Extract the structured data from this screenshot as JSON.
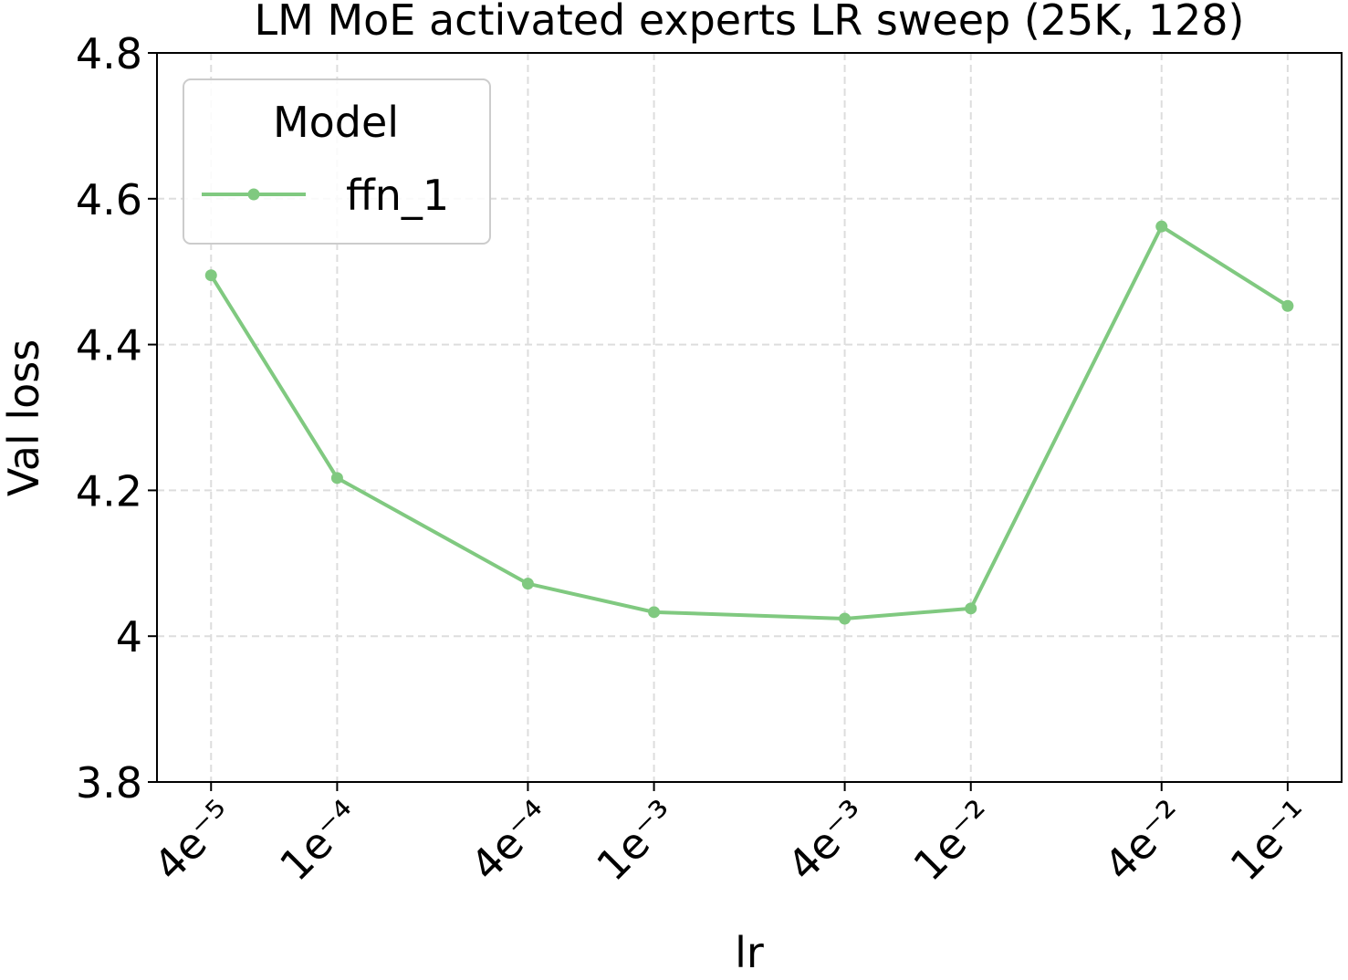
{
  "chart_data": {
    "type": "line",
    "title": "LM MoE activated experts LR sweep (25K, 128)",
    "x_label": "lr",
    "y_label": "Val loss",
    "x": [
      4e-05,
      0.0001,
      0.0004,
      0.001,
      0.004,
      0.01,
      0.04,
      0.1
    ],
    "series": [
      {
        "name": "ffn_1",
        "color": "#80c980",
        "values": [
          4.495,
          4.217,
          4.072,
          4.033,
          4.024,
          4.038,
          4.562,
          4.453
        ]
      }
    ],
    "x_log": true,
    "xlim": [
      2.7e-05,
      0.148
    ],
    "xticks": [
      {
        "value": 4e-05,
        "label": "4e⁻⁵"
      },
      {
        "value": 0.0001,
        "label": "1e⁻⁴"
      },
      {
        "value": 0.0004,
        "label": "4e⁻⁴"
      },
      {
        "value": 0.001,
        "label": "1e⁻³"
      },
      {
        "value": 0.004,
        "label": "4e⁻³"
      },
      {
        "value": 0.01,
        "label": "1e⁻²"
      },
      {
        "value": 0.04,
        "label": "4e⁻²"
      },
      {
        "value": 0.1,
        "label": "1e⁻¹"
      }
    ],
    "ylim": [
      3.8,
      4.8
    ],
    "yticks": [
      3.8,
      4,
      4.2,
      4.4,
      4.6,
      4.8
    ],
    "grid": true,
    "legend": {
      "title": "Model",
      "position": "upper left"
    }
  }
}
